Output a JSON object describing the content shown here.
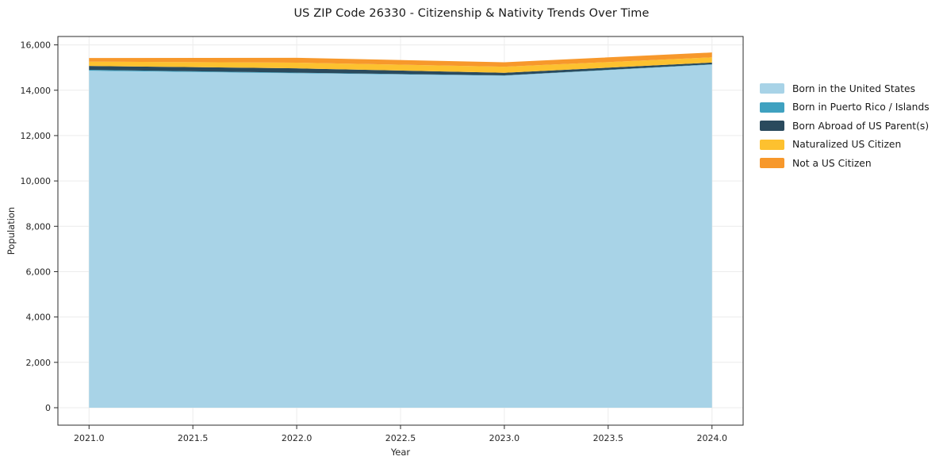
{
  "chart_data": {
    "type": "area",
    "stacked": true,
    "title": "US ZIP Code 26330 - Citizenship & Nativity Trends Over Time",
    "xlabel": "Year",
    "ylabel": "Population",
    "x": [
      2021,
      2022,
      2023,
      2024
    ],
    "series": [
      {
        "name": "Born in the United States",
        "color": "#a8d3e7",
        "values": [
          14860,
          14750,
          14645,
          15130
        ]
      },
      {
        "name": "Born in Puerto Rico / Islands",
        "color": "#3fa1c0",
        "values": [
          40,
          25,
          10,
          15
        ]
      },
      {
        "name": "Born Abroad of US Parent(s)",
        "color": "#2a4a5d",
        "values": [
          170,
          190,
          115,
          75
        ]
      },
      {
        "name": "Naturalized US Citizen",
        "color": "#fdc12f",
        "values": [
          190,
          250,
          265,
          230
        ]
      },
      {
        "name": "Not a US Citizen",
        "color": "#f7982b",
        "values": [
          160,
          215,
          200,
          215
        ]
      }
    ],
    "totals": [
      15420,
      15430,
      15235,
      15665
    ],
    "xticks": [
      2021.0,
      2021.5,
      2022.0,
      2022.5,
      2023.0,
      2023.5,
      2024.0
    ],
    "xtick_labels": [
      "2021.0",
      "2021.5",
      "2022.0",
      "2022.5",
      "2023.0",
      "2023.5",
      "2024.0"
    ],
    "yticks": [
      0,
      2000,
      4000,
      6000,
      8000,
      10000,
      12000,
      14000,
      16000
    ],
    "ytick_labels": [
      "0",
      "2,000",
      "4,000",
      "6,000",
      "8,000",
      "10,000",
      "12,000",
      "14,000",
      "16,000"
    ],
    "xlim": [
      2020.85,
      2024.15
    ],
    "ylim": [
      -770,
      16370
    ],
    "grid": true,
    "grid_color": "#ececec",
    "spine_color": "#2b2b2b",
    "legend_position": "right"
  }
}
